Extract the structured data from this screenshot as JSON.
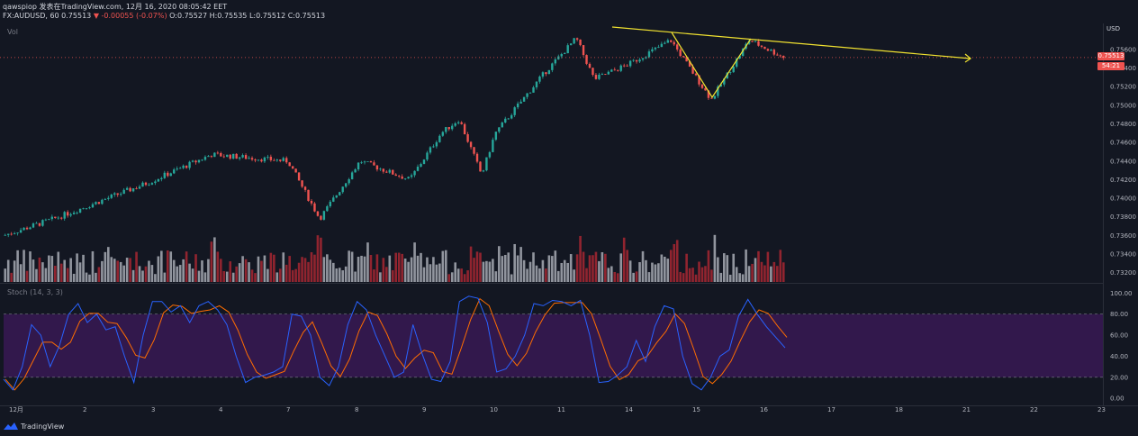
{
  "header": {
    "line1": "qawspiop 发表在TradingView.com, 12月 16, 2020 08:05:42 EET",
    "symbol": "FX:AUDUSD, 60",
    "last": "0.75513",
    "change": "▼ -0.00055 (-0.07%)",
    "ohlc_o": "O:0.75527",
    "ohlc_h": "H:0.75535",
    "ohlc_l": "L:0.75512",
    "ohlc_c": "C:0.75513"
  },
  "panes": {
    "volume_label": "Vol",
    "stoch_label": "Stoch (14, 3, 3)",
    "currency": "USD"
  },
  "price_tag": "0.75513",
  "countdown_tag": "54:21",
  "footer": {
    "brand": "TradingView"
  },
  "colors": {
    "background": "#131722",
    "up": "#26a69a",
    "down": "#ef5350",
    "trendline": "#f0e130",
    "stoch_band": "#3d1a5b",
    "k_line": "#2962ff",
    "d_line": "#ff6d00"
  },
  "chart_data": [
    {
      "type": "candlestick",
      "y_ticks": [
        "0.75600",
        "0.75400",
        "0.75200",
        "0.75000",
        "0.74800",
        "0.74600",
        "0.74400",
        "0.74200",
        "0.74000",
        "0.73800",
        "0.73600",
        "0.73400",
        "0.73200"
      ],
      "x_ticks": [
        "12月",
        "2",
        "3",
        "4",
        "7",
        "8",
        "9",
        "10",
        "11",
        "14",
        "15",
        "16",
        "17",
        "18",
        "21",
        "22",
        "23"
      ],
      "ylim": [
        0.731,
        0.7588
      ],
      "approx_path": [
        {
          "x": "12月",
          "y": 0.736
        },
        {
          "x": "2",
          "y": 0.7378
        },
        {
          "x": "3",
          "y": 0.7415
        },
        {
          "x": "4",
          "y": 0.7447
        },
        {
          "x": "7",
          "y": 0.744
        },
        {
          "x": "7",
          "y": 0.7378
        },
        {
          "x": "8",
          "y": 0.744
        },
        {
          "x": "9",
          "y": 0.742
        },
        {
          "x": "9",
          "y": 0.747
        },
        {
          "x": "10",
          "y": 0.7485
        },
        {
          "x": "10",
          "y": 0.7425
        },
        {
          "x": "10",
          "y": 0.747
        },
        {
          "x": "11",
          "y": 0.7535
        },
        {
          "x": "11",
          "y": 0.7572
        },
        {
          "x": "11",
          "y": 0.7528
        },
        {
          "x": "14",
          "y": 0.7545
        },
        {
          "x": "14",
          "y": 0.757
        },
        {
          "x": "15",
          "y": 0.7506
        },
        {
          "x": "15",
          "y": 0.757
        },
        {
          "x": "16",
          "y": 0.7551
        }
      ],
      "last_price": 0.75513
    },
    {
      "type": "stochastic",
      "name": "Stoch (14, 3, 3)",
      "y_ticks": [
        "100.00",
        "80.00",
        "60.00",
        "40.00",
        "20.00",
        "0.00"
      ],
      "ylim": [
        -5,
        108
      ],
      "band": [
        20,
        80
      ],
      "k_values": [
        18,
        8,
        30,
        70,
        60,
        30,
        50,
        80,
        90,
        72,
        80,
        65,
        68,
        40,
        15,
        60,
        92,
        92,
        82,
        88,
        72,
        88,
        92,
        84,
        70,
        40,
        15,
        20,
        22,
        25,
        30,
        80,
        78,
        60,
        20,
        12,
        30,
        70,
        92,
        84,
        60,
        40,
        20,
        25,
        70,
        42,
        18,
        16,
        35,
        92,
        97,
        95,
        72,
        25,
        28,
        40,
        60,
        90,
        88,
        93,
        92,
        88,
        93,
        60,
        15,
        16,
        22,
        30,
        55,
        35,
        68,
        88,
        85,
        40,
        14,
        8,
        20,
        40,
        46,
        78,
        94,
        80,
        68,
        58,
        48
      ]
    }
  ]
}
